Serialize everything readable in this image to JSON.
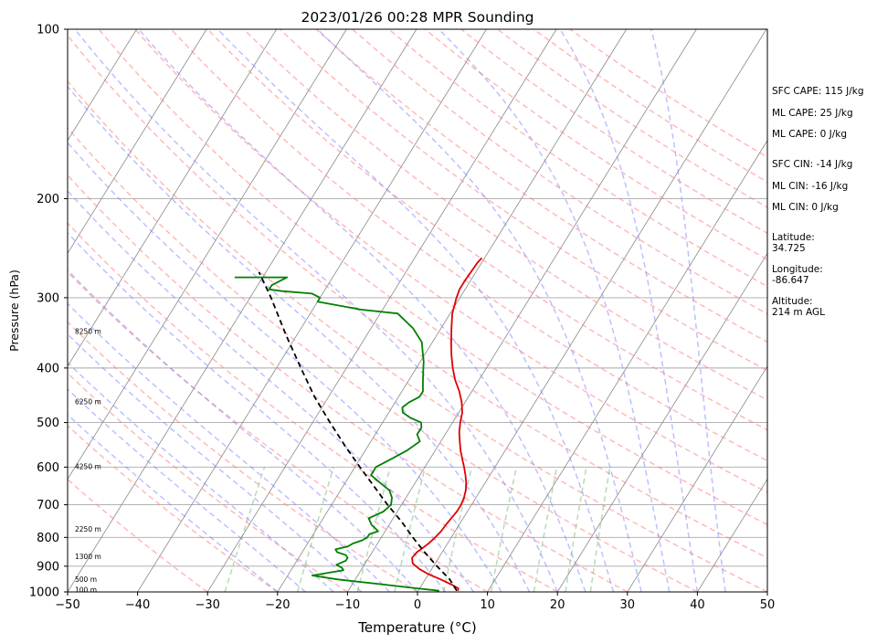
{
  "chart_data": {
    "type": "skew-t",
    "title": "2023/01/26 00:28 MPR Sounding",
    "xlabel": "Temperature (°C)",
    "ylabel": "Pressure (hPa)",
    "xlim": [
      -50,
      50
    ],
    "ylim": [
      1000,
      100
    ],
    "y_scale": "log",
    "x_ticks": [
      "−50",
      "−40",
      "−30",
      "−20",
      "−10",
      "0",
      "10",
      "20",
      "30",
      "40",
      "50"
    ],
    "y_ticks": [
      "100",
      "200",
      "300",
      "400",
      "500",
      "600",
      "700",
      "800",
      "900",
      "1000"
    ],
    "grid": true,
    "height_labels": [
      {
        "text": "100 m",
        "p": 995
      },
      {
        "text": "500 m",
        "p": 953
      },
      {
        "text": "1300 m",
        "p": 868
      },
      {
        "text": "2250 m",
        "p": 775
      },
      {
        "text": "4250 m",
        "p": 600
      },
      {
        "text": "6250 m",
        "p": 460
      },
      {
        "text": "8250 m",
        "p": 345
      }
    ],
    "series": [
      {
        "role": "temperature",
        "color": "#e00000",
        "points": [
          [
            995,
            5.7
          ],
          [
            985,
            5.5
          ],
          [
            970,
            4.2
          ],
          [
            950,
            2.2
          ],
          [
            930,
            0.0
          ],
          [
            910,
            -1.8
          ],
          [
            890,
            -3.2
          ],
          [
            870,
            -3.8
          ],
          [
            850,
            -3.6
          ],
          [
            830,
            -3.0
          ],
          [
            820,
            -2.7
          ],
          [
            800,
            -2.3
          ],
          [
            780,
            -2.0
          ],
          [
            760,
            -1.9
          ],
          [
            740,
            -1.7
          ],
          [
            720,
            -1.5
          ],
          [
            700,
            -1.5
          ],
          [
            680,
            -1.7
          ],
          [
            660,
            -2.1
          ],
          [
            640,
            -2.7
          ],
          [
            620,
            -3.5
          ],
          [
            600,
            -4.4
          ],
          [
            580,
            -5.4
          ],
          [
            560,
            -6.4
          ],
          [
            540,
            -7.3
          ],
          [
            520,
            -8.2
          ],
          [
            500,
            -8.9
          ],
          [
            480,
            -9.5
          ],
          [
            460,
            -10.5
          ],
          [
            440,
            -11.8
          ],
          [
            420,
            -13.4
          ],
          [
            400,
            -14.8
          ],
          [
            380,
            -16.1
          ],
          [
            360,
            -17.3
          ],
          [
            340,
            -18.5
          ],
          [
            320,
            -19.7
          ],
          [
            300,
            -20.5
          ],
          [
            290,
            -20.8
          ],
          [
            280,
            -20.8
          ],
          [
            270,
            -20.7
          ],
          [
            260,
            -20.6
          ],
          [
            255,
            -20.4
          ]
        ]
      },
      {
        "role": "dewpoint",
        "color": "#008000",
        "points": [
          [
            995,
            3.0
          ],
          [
            985,
            -0.5
          ],
          [
            970,
            -5.5
          ],
          [
            950,
            -12.5
          ],
          [
            935,
            -16.5
          ],
          [
            925,
            -14.5
          ],
          [
            915,
            -12.5
          ],
          [
            905,
            -13.0
          ],
          [
            895,
            -14.0
          ],
          [
            880,
            -13.0
          ],
          [
            870,
            -13.0
          ],
          [
            860,
            -13.5
          ],
          [
            850,
            -15.0
          ],
          [
            840,
            -15.5
          ],
          [
            830,
            -14.0
          ],
          [
            820,
            -13.5
          ],
          [
            810,
            -12.5
          ],
          [
            800,
            -12.0
          ],
          [
            790,
            -12.0
          ],
          [
            780,
            -11.0
          ],
          [
            760,
            -12.5
          ],
          [
            740,
            -13.5
          ],
          [
            720,
            -12.0
          ],
          [
            700,
            -11.5
          ],
          [
            680,
            -12.0
          ],
          [
            660,
            -13.0
          ],
          [
            640,
            -15.0
          ],
          [
            620,
            -17.0
          ],
          [
            600,
            -17.0
          ],
          [
            580,
            -15.5
          ],
          [
            560,
            -14.0
          ],
          [
            540,
            -13.0
          ],
          [
            525,
            -14.0
          ],
          [
            510,
            -14.0
          ],
          [
            500,
            -14.5
          ],
          [
            490,
            -16.5
          ],
          [
            480,
            -18.0
          ],
          [
            470,
            -18.5
          ],
          [
            460,
            -18.0
          ],
          [
            450,
            -17.0
          ],
          [
            440,
            -17.0
          ],
          [
            430,
            -17.5
          ],
          [
            420,
            -18.0
          ],
          [
            410,
            -18.5
          ],
          [
            400,
            -19.0
          ],
          [
            390,
            -19.5
          ],
          [
            375,
            -20.5
          ],
          [
            360,
            -21.5
          ],
          [
            340,
            -24.0
          ],
          [
            320,
            -27.5
          ],
          [
            315,
            -33.0
          ],
          [
            305,
            -40.0
          ],
          [
            300,
            -40.0
          ],
          [
            295,
            -41.5
          ],
          [
            292,
            -46.0
          ],
          [
            290,
            -48.0
          ],
          [
            285,
            -48.0
          ],
          [
            276,
            -46.5
          ],
          [
            276,
            -54.0
          ]
        ]
      },
      {
        "role": "parcel",
        "color": "#000000",
        "style": "dashed",
        "points": [
          [
            995,
            5.5
          ],
          [
            950,
            3.5
          ],
          [
            900,
            0.5
          ],
          [
            850,
            -2.5
          ],
          [
            800,
            -5.5
          ],
          [
            750,
            -8.5
          ],
          [
            700,
            -12.0
          ],
          [
            650,
            -15.5
          ],
          [
            600,
            -19.3
          ],
          [
            550,
            -23.3
          ],
          [
            500,
            -27.5
          ],
          [
            450,
            -32.0
          ],
          [
            400,
            -36.5
          ],
          [
            350,
            -41.5
          ],
          [
            300,
            -47.0
          ],
          [
            270,
            -51.0
          ]
        ]
      }
    ]
  },
  "info_panel": {
    "sfc_cape": "SFC CAPE: 115 J/kg",
    "ml_cape_1": "ML CAPE: 25 J/kg",
    "ml_cape_2": "ML CAPE: 0 J/kg",
    "sfc_cin": "SFC CIN: -14 J/kg",
    "ml_cin_1": "ML CIN: -16 J/kg",
    "ml_cin_2": "ML CIN: 0 J/kg",
    "latitude": "Latitude:\n34.725",
    "longitude": "Longitude:\n-86.647",
    "altitude": "Altitude:\n214 m AGL"
  },
  "colors": {
    "dry_adiabat": "#ff8080",
    "moist_adiabat": "#8080ff",
    "mixing_ratio": "#60b060",
    "isotherm": "#888888"
  }
}
